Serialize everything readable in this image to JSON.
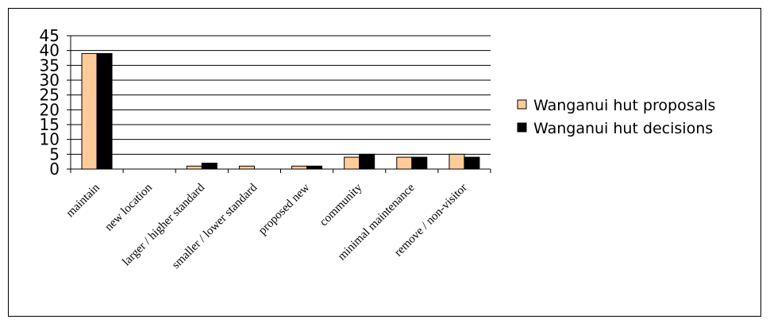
{
  "chart_data": {
    "type": "bar",
    "categories": [
      "maintain",
      "new location",
      "larger / higher standard",
      "smaller / lower standard",
      "proposed new",
      "community",
      "minimal maintenance",
      "remove / non-visitor"
    ],
    "series": [
      {
        "name": "Wanganui hut proposals",
        "color": "#FFCC99",
        "values": [
          39,
          0,
          1,
          1,
          1,
          4,
          4,
          5
        ]
      },
      {
        "name": "Wanganui hut decisions",
        "color": "#000000",
        "values": [
          39,
          0,
          2,
          0,
          1,
          5,
          4,
          4
        ]
      }
    ],
    "ylim": [
      0,
      45
    ],
    "yticks": [
      0,
      5,
      10,
      15,
      20,
      25,
      30,
      35,
      40,
      45
    ],
    "grid": true,
    "legend_position": "right",
    "title": "",
    "xlabel": "",
    "ylabel": ""
  }
}
